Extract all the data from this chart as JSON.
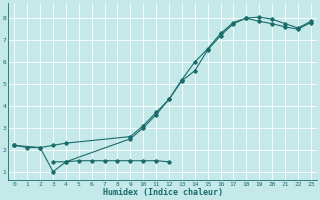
{
  "xlabel": "Humidex (Indice chaleur)",
  "bg_color": "#c5e8e8",
  "grid_color": "#dcdcdc",
  "line_color": "#1a6b6b",
  "xlim": [
    -0.5,
    23.5
  ],
  "ylim": [
    0.6,
    8.7
  ],
  "xticks": [
    0,
    1,
    2,
    3,
    4,
    5,
    6,
    7,
    8,
    9,
    10,
    11,
    12,
    13,
    14,
    15,
    16,
    17,
    18,
    19,
    20,
    21,
    22,
    23
  ],
  "yticks": [
    1,
    2,
    3,
    4,
    5,
    6,
    7,
    8
  ],
  "line1_x": [
    0,
    1,
    2,
    3,
    4,
    9,
    10,
    11,
    12,
    13,
    14,
    15,
    16,
    17,
    18,
    19,
    20,
    21,
    22,
    23
  ],
  "line1_y": [
    2.2,
    2.1,
    2.1,
    2.2,
    2.3,
    2.6,
    3.1,
    3.7,
    4.3,
    5.2,
    6.0,
    6.6,
    7.3,
    7.8,
    8.0,
    7.85,
    7.75,
    7.6,
    7.5,
    7.8
  ],
  "line2_x": [
    0,
    1,
    2,
    3,
    4,
    5,
    6,
    7,
    8,
    9,
    10,
    11,
    12,
    13,
    14,
    15,
    16,
    17,
    18,
    19,
    20,
    21,
    22,
    23
  ],
  "line2_y": [
    2.2,
    null,
    null,
    1.45,
    1.45,
    1.5,
    1.5,
    1.5,
    1.5,
    1.5,
    1.5,
    1.5,
    1.45,
    null,
    null,
    null,
    null,
    null,
    null,
    null,
    null,
    null,
    null,
    null
  ],
  "line3_x": [
    0,
    2,
    3,
    4,
    9,
    10,
    11,
    12,
    13,
    14,
    15,
    16,
    17,
    18,
    19,
    20,
    21,
    22,
    23
  ],
  "line3_y": [
    2.2,
    2.1,
    1.0,
    1.45,
    2.5,
    3.0,
    3.6,
    4.3,
    5.15,
    5.6,
    6.55,
    7.2,
    7.75,
    8.0,
    8.05,
    7.95,
    7.75,
    7.55,
    7.85
  ]
}
